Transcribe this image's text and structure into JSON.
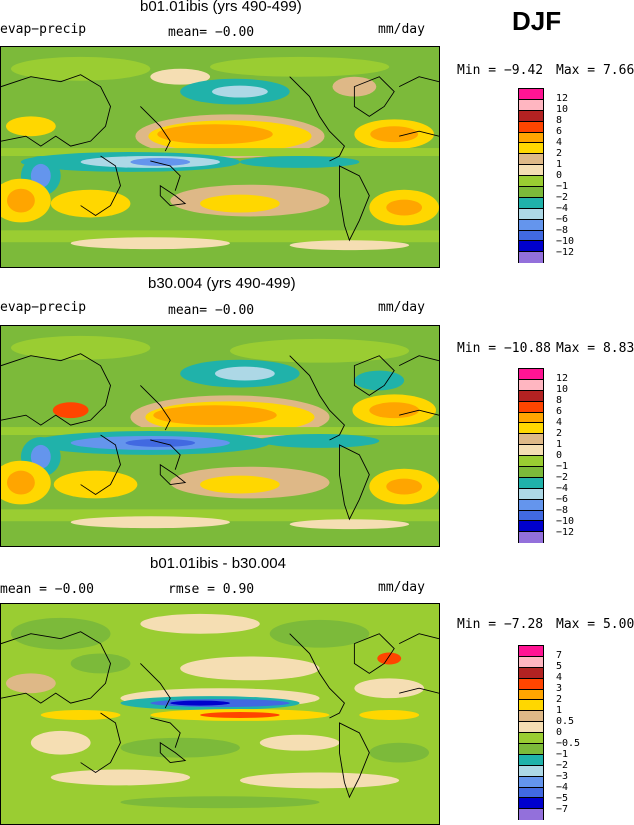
{
  "season": "DJF",
  "panels": [
    {
      "title": "b01.01ibis (yrs 490-499)",
      "left_label": "evap−precip",
      "center_label": "mean=   −0.00",
      "units": "mm/day",
      "min_label": "Min =   −9.42",
      "max_label": "Max =    7.66",
      "legend": [
        "12",
        "10",
        "8",
        "6",
        "4",
        "2",
        "1",
        "0",
        "−1",
        "−2",
        "−4",
        "−6",
        "−8",
        "−10",
        "−12"
      ],
      "colors": [
        "#ff1493",
        "#ffb6c1",
        "#b22222",
        "#ff4500",
        "#ffa500",
        "#ffd700",
        "#deb887",
        "#f5deb3",
        "#9acd32",
        "#7cba3a",
        "#20b2aa",
        "#add8e6",
        "#6495ed",
        "#4169e1",
        "#0000cd",
        "#9370db"
      ]
    },
    {
      "title": "b30.004 (yrs 490-499)",
      "left_label": "evap−precip",
      "center_label": "mean=   −0.00",
      "units": "mm/day",
      "min_label": "Min = −10.88",
      "max_label": "Max =    8.83",
      "legend": [
        "12",
        "10",
        "8",
        "6",
        "4",
        "2",
        "1",
        "0",
        "−1",
        "−2",
        "−4",
        "−6",
        "−8",
        "−10",
        "−12"
      ],
      "colors": [
        "#ff1493",
        "#ffb6c1",
        "#b22222",
        "#ff4500",
        "#ffa500",
        "#ffd700",
        "#deb887",
        "#f5deb3",
        "#9acd32",
        "#7cba3a",
        "#20b2aa",
        "#add8e6",
        "#6495ed",
        "#4169e1",
        "#0000cd",
        "#9370db"
      ]
    },
    {
      "title": "b01.01ibis - b30.004",
      "left_label": "mean =   −0.00",
      "center_label": "rmse =    0.90",
      "units": "mm/day",
      "min_label": "Min =   −7.28",
      "max_label": "Max =    5.00",
      "legend": [
        "7",
        "5",
        "4",
        "3",
        "2",
        "1",
        "0.5",
        "0",
        "−0.5",
        "−1",
        "−2",
        "−3",
        "−4",
        "−5",
        "−7"
      ],
      "colors": [
        "#ff1493",
        "#ffb6c1",
        "#b22222",
        "#ff4500",
        "#ffa500",
        "#ffd700",
        "#deb887",
        "#f5deb3",
        "#9acd32",
        "#7cba3a",
        "#20b2aa",
        "#add8e6",
        "#6495ed",
        "#4169e1",
        "#0000cd",
        "#9370db"
      ]
    }
  ],
  "chart_data": [
    {
      "type": "heatmap",
      "title": "b01.01ibis (yrs 490-499)",
      "variable": "evap−precip",
      "units": "mm/day",
      "mean": -0.0,
      "min": -9.42,
      "max": 7.66,
      "contour_levels": [
        -12,
        -10,
        -8,
        -6,
        -4,
        -2,
        -1,
        0,
        1,
        2,
        4,
        6,
        8,
        10,
        12
      ]
    },
    {
      "type": "heatmap",
      "title": "b30.004 (yrs 490-499)",
      "variable": "evap−precip",
      "units": "mm/day",
      "mean": -0.0,
      "min": -10.88,
      "max": 8.83,
      "contour_levels": [
        -12,
        -10,
        -8,
        -6,
        -4,
        -2,
        -1,
        0,
        1,
        2,
        4,
        6,
        8,
        10,
        12
      ]
    },
    {
      "type": "heatmap",
      "title": "b01.01ibis - b30.004",
      "units": "mm/day",
      "mean": -0.0,
      "rmse": 0.9,
      "min": -7.28,
      "max": 5.0,
      "contour_levels": [
        -7,
        -5,
        -4,
        -3,
        -2,
        -1,
        -0.5,
        0,
        0.5,
        1,
        2,
        3,
        4,
        5,
        7
      ]
    }
  ]
}
